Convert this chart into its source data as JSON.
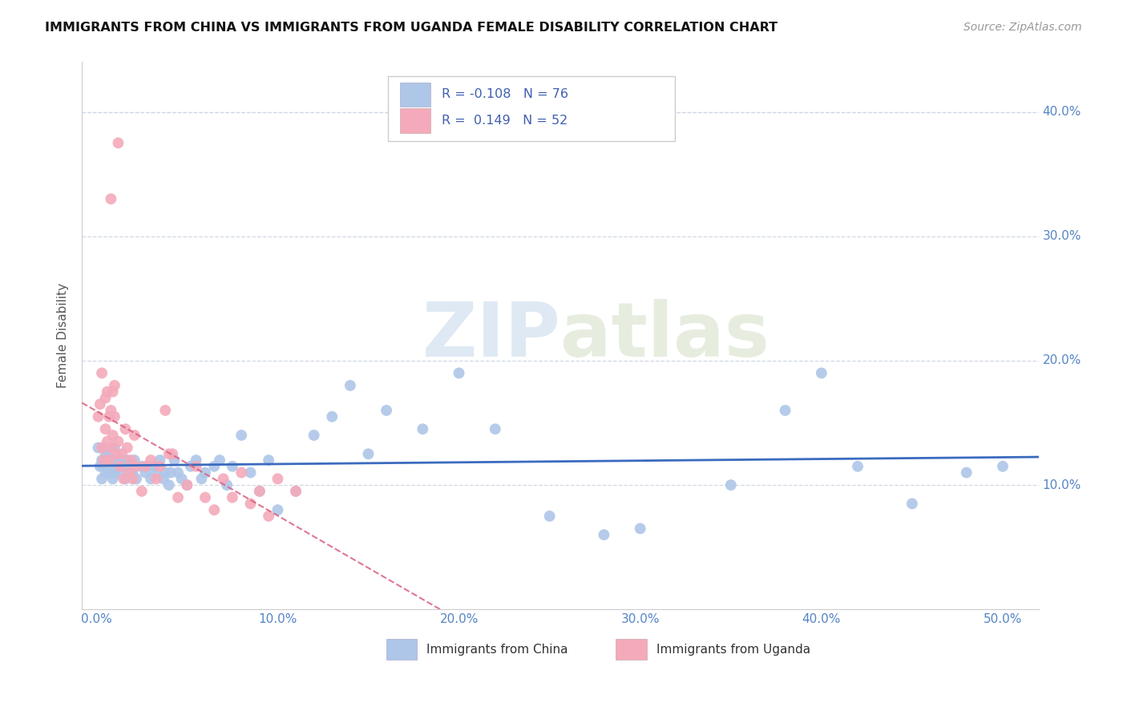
{
  "title": "IMMIGRANTS FROM CHINA VS IMMIGRANTS FROM UGANDA FEMALE DISABILITY CORRELATION CHART",
  "source": "Source: ZipAtlas.com",
  "ylabel": "Female Disability",
  "x_ticks": [
    0.0,
    0.1,
    0.2,
    0.3,
    0.4,
    0.5
  ],
  "x_tick_labels": [
    "0.0%",
    "10.0%",
    "20.0%",
    "30.0%",
    "40.0%",
    "50.0%"
  ],
  "y_ticks": [
    0.1,
    0.2,
    0.3,
    0.4
  ],
  "y_tick_labels": [
    "10.0%",
    "20.0%",
    "30.0%",
    "40.0%"
  ],
  "xlim": [
    -0.008,
    0.52
  ],
  "ylim": [
    0.0,
    0.44
  ],
  "legend_china_label": "Immigrants from China",
  "legend_uganda_label": "Immigrants from Uganda",
  "china_R": "-0.108",
  "china_N": "76",
  "uganda_R": "0.149",
  "uganda_N": "52",
  "china_color": "#aec6e8",
  "uganda_color": "#f4aabb",
  "china_line_color": "#3b6bbf",
  "uganda_line_color": "#d95f7f",
  "watermark_zip": "ZIP",
  "watermark_atlas": "atlas",
  "background_color": "#ffffff",
  "china_scatter_x": [
    0.001,
    0.002,
    0.003,
    0.003,
    0.004,
    0.004,
    0.005,
    0.005,
    0.006,
    0.006,
    0.007,
    0.007,
    0.008,
    0.008,
    0.009,
    0.009,
    0.01,
    0.01,
    0.011,
    0.012,
    0.013,
    0.014,
    0.015,
    0.016,
    0.017,
    0.018,
    0.02,
    0.021,
    0.022,
    0.025,
    0.027,
    0.028,
    0.03,
    0.032,
    0.033,
    0.035,
    0.037,
    0.038,
    0.04,
    0.041,
    0.043,
    0.045,
    0.047,
    0.05,
    0.052,
    0.055,
    0.058,
    0.06,
    0.065,
    0.068,
    0.072,
    0.075,
    0.08,
    0.085,
    0.09,
    0.095,
    0.1,
    0.11,
    0.12,
    0.13,
    0.14,
    0.15,
    0.16,
    0.18,
    0.2,
    0.22,
    0.25,
    0.28,
    0.3,
    0.35,
    0.38,
    0.4,
    0.42,
    0.45,
    0.48,
    0.5
  ],
  "china_scatter_y": [
    0.13,
    0.115,
    0.12,
    0.105,
    0.115,
    0.13,
    0.11,
    0.125,
    0.12,
    0.115,
    0.125,
    0.11,
    0.115,
    0.12,
    0.105,
    0.115,
    0.13,
    0.11,
    0.12,
    0.115,
    0.11,
    0.12,
    0.115,
    0.105,
    0.12,
    0.115,
    0.11,
    0.12,
    0.105,
    0.115,
    0.11,
    0.115,
    0.105,
    0.115,
    0.11,
    0.12,
    0.105,
    0.11,
    0.1,
    0.11,
    0.12,
    0.11,
    0.105,
    0.1,
    0.115,
    0.12,
    0.105,
    0.11,
    0.115,
    0.12,
    0.1,
    0.115,
    0.14,
    0.11,
    0.095,
    0.12,
    0.08,
    0.095,
    0.14,
    0.155,
    0.18,
    0.125,
    0.16,
    0.145,
    0.19,
    0.145,
    0.075,
    0.06,
    0.065,
    0.1,
    0.16,
    0.19,
    0.115,
    0.085,
    0.11,
    0.115
  ],
  "uganda_scatter_x": [
    0.001,
    0.002,
    0.003,
    0.003,
    0.004,
    0.005,
    0.005,
    0.006,
    0.006,
    0.007,
    0.007,
    0.008,
    0.008,
    0.009,
    0.009,
    0.01,
    0.01,
    0.011,
    0.012,
    0.013,
    0.014,
    0.015,
    0.016,
    0.017,
    0.018,
    0.019,
    0.02,
    0.021,
    0.022,
    0.025,
    0.027,
    0.03,
    0.033,
    0.035,
    0.038,
    0.04,
    0.042,
    0.045,
    0.05,
    0.055,
    0.06,
    0.065,
    0.07,
    0.075,
    0.08,
    0.085,
    0.09,
    0.095,
    0.1,
    0.11,
    0.012,
    0.008
  ],
  "uganda_scatter_y": [
    0.155,
    0.165,
    0.13,
    0.19,
    0.12,
    0.17,
    0.145,
    0.175,
    0.135,
    0.155,
    0.12,
    0.16,
    0.13,
    0.175,
    0.14,
    0.155,
    0.18,
    0.125,
    0.135,
    0.115,
    0.125,
    0.105,
    0.145,
    0.13,
    0.11,
    0.12,
    0.105,
    0.14,
    0.115,
    0.095,
    0.115,
    0.12,
    0.105,
    0.115,
    0.16,
    0.125,
    0.125,
    0.09,
    0.1,
    0.115,
    0.09,
    0.08,
    0.105,
    0.09,
    0.11,
    0.085,
    0.095,
    0.075,
    0.105,
    0.095,
    0.375,
    0.33
  ]
}
